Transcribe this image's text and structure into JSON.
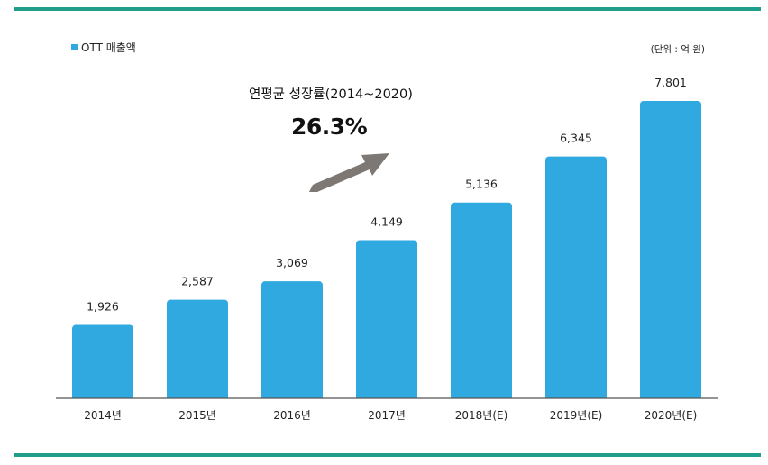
{
  "colors": {
    "bar": "#2fa9e0",
    "rule": "#1f9e8a",
    "axis": "#555555",
    "arrow": "#7d7874"
  },
  "legend": {
    "label": "OTT 매출액"
  },
  "unit_note": "(단위 :  억 원)",
  "annotation": {
    "label": "연평균 성장률(2014~2020)",
    "value": "26.3%",
    "icon": "growth-arrow-icon"
  },
  "chart_data": {
    "type": "bar",
    "categories": [
      "2014년",
      "2015년",
      "2016년",
      "2017년",
      "2018년(E)",
      "2019년(E)",
      "2020년(E)"
    ],
    "series": [
      {
        "name": "OTT 매출액",
        "values": [
          1926,
          2587,
          3069,
          4149,
          5136,
          6345,
          7801
        ]
      }
    ],
    "value_labels": [
      "1,926",
      "2,587",
      "3,069",
      "4,149",
      "5,136",
      "6,345",
      "7,801"
    ],
    "ylim": [
      0,
      7801
    ],
    "legend_position": "top-left",
    "grid": false
  }
}
